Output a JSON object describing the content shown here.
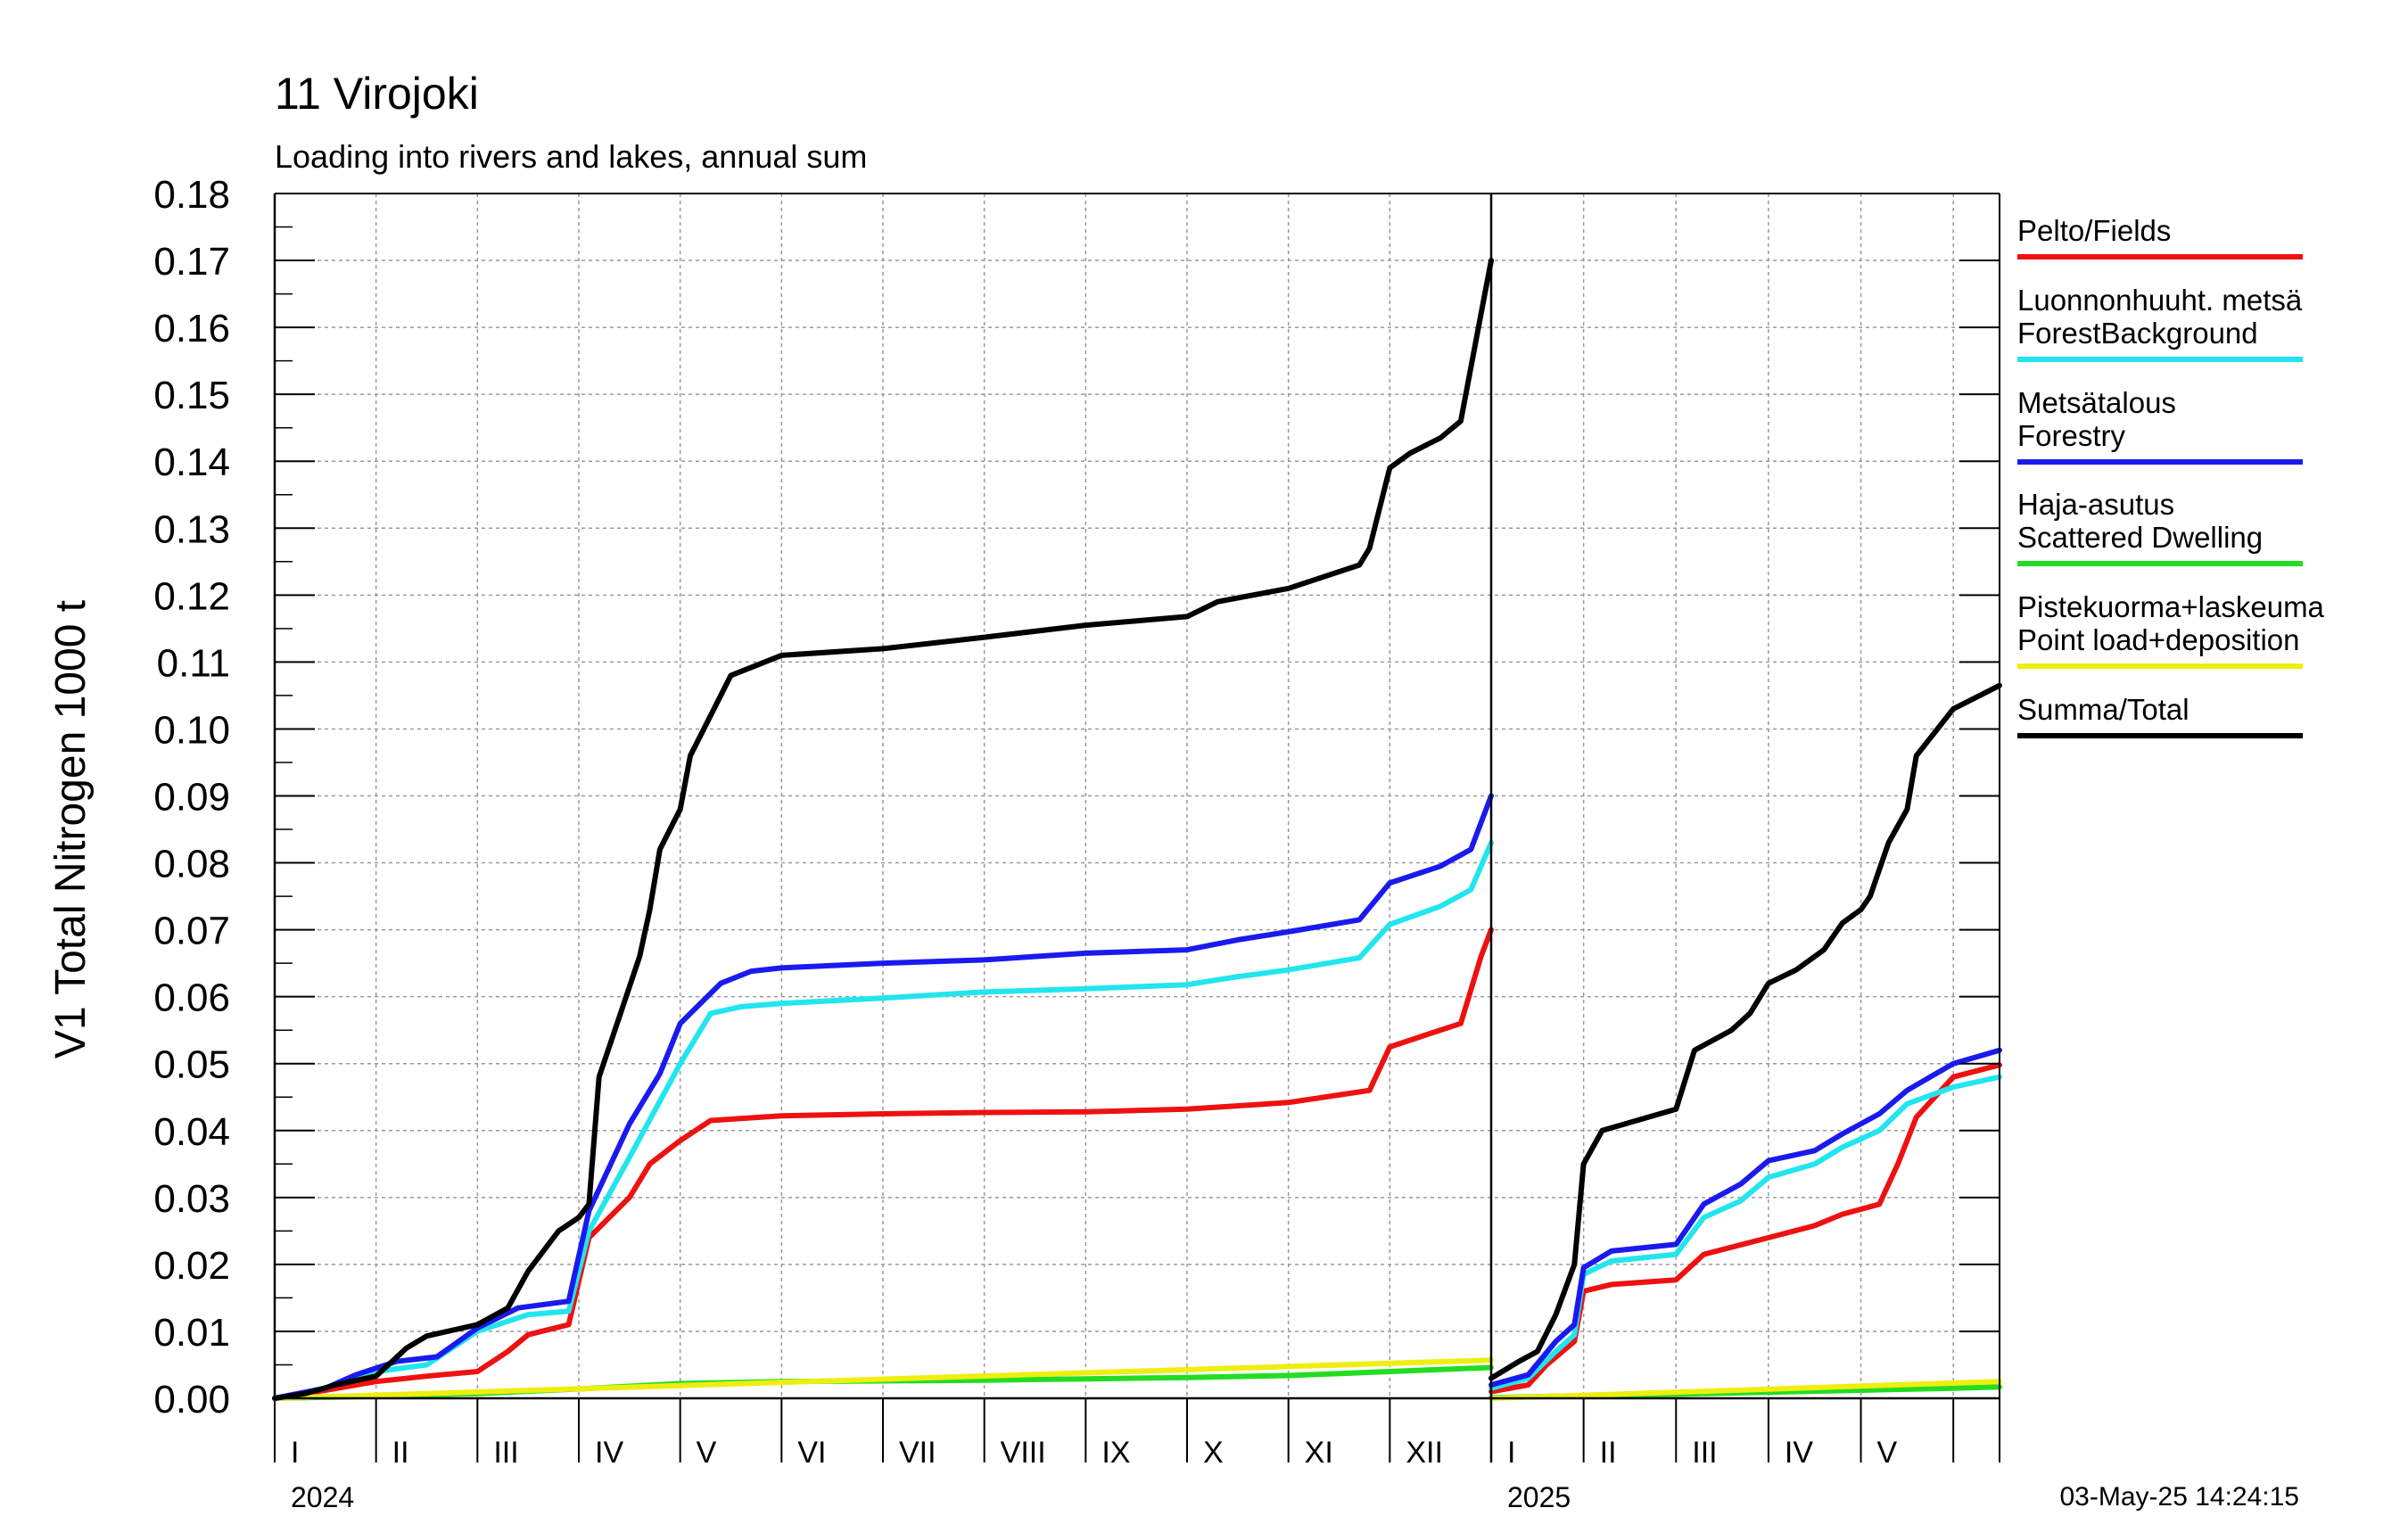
{
  "chart_data": {
    "type": "line",
    "title": "11 Virojoki",
    "subtitle": "Loading into rivers and lakes, annual sum",
    "ylabel": "V1 Total Nitrogen 1000 t",
    "xlabel": "",
    "ylim": [
      0,
      0.18
    ],
    "yticks": [
      "0.00",
      "0.01",
      "0.02",
      "0.03",
      "0.04",
      "0.05",
      "0.06",
      "0.07",
      "0.08",
      "0.09",
      "0.10",
      "0.11",
      "0.12",
      "0.13",
      "0.14",
      "0.15",
      "0.16",
      "0.17",
      "0.18"
    ],
    "grid": true,
    "legend_position": "right",
    "timestamp": "03-May-25 14:24:15",
    "years": [
      {
        "label": "2024",
        "months": [
          "I",
          "II",
          "III",
          "IV",
          "V",
          "VI",
          "VII",
          "VIII",
          "IX",
          "X",
          "XI",
          "XII"
        ]
      },
      {
        "label": "2025",
        "months": [
          "I",
          "II",
          "III",
          "IV",
          "V"
        ]
      }
    ],
    "series": [
      {
        "name": "Pelto/Fields",
        "color": "#ee1111",
        "segments": [
          {
            "year": "2024",
            "points": [
              [
                0,
                0
              ],
              [
                0.5,
                0.0012
              ],
              [
                1,
                0.0025
              ],
              [
                1.5,
                0.0033
              ],
              [
                2,
                0.004
              ],
              [
                2.3,
                0.007
              ],
              [
                2.5,
                0.0095
              ],
              [
                2.9,
                0.011
              ],
              [
                3.1,
                0.024
              ],
              [
                3.5,
                0.03
              ],
              [
                3.7,
                0.035
              ],
              [
                4,
                0.0385
              ],
              [
                4.3,
                0.0415
              ],
              [
                5,
                0.0422
              ],
              [
                6,
                0.0425
              ],
              [
                7,
                0.0427
              ],
              [
                8,
                0.0428
              ],
              [
                9,
                0.0432
              ],
              [
                10,
                0.0442
              ],
              [
                10.8,
                0.046
              ],
              [
                11,
                0.0525
              ],
              [
                11.4,
                0.0545
              ],
              [
                11.7,
                0.056
              ],
              [
                11.9,
                0.066
              ],
              [
                12,
                0.07
              ]
            ]
          },
          {
            "year": "2025",
            "points": [
              [
                0,
                0.001
              ],
              [
                0.4,
                0.002
              ],
              [
                0.6,
                0.005
              ],
              [
                0.9,
                0.0085
              ],
              [
                1,
                0.016
              ],
              [
                1.3,
                0.017
              ],
              [
                2,
                0.0177
              ],
              [
                2.3,
                0.0215
              ],
              [
                3,
                0.024
              ],
              [
                3.5,
                0.0258
              ],
              [
                3.8,
                0.0275
              ],
              [
                4.2,
                0.029
              ],
              [
                4.4,
                0.035
              ],
              [
                4.6,
                0.042
              ],
              [
                5,
                0.048
              ],
              [
                5.5,
                0.0498
              ]
            ]
          }
        ]
      },
      {
        "name": "Luonnonhuuht. metsä ForestBackground",
        "color": "#22e5ee",
        "segments": [
          {
            "year": "2024",
            "points": [
              [
                0,
                0
              ],
              [
                0.5,
                0.0015
              ],
              [
                1,
                0.004
              ],
              [
                1.5,
                0.005
              ],
              [
                2,
                0.01
              ],
              [
                2.5,
                0.0125
              ],
              [
                2.9,
                0.013
              ],
              [
                3.1,
                0.025
              ],
              [
                3.5,
                0.036
              ],
              [
                4,
                0.05
              ],
              [
                4.3,
                0.0575
              ],
              [
                4.6,
                0.0585
              ],
              [
                5,
                0.059
              ],
              [
                6,
                0.0598
              ],
              [
                7,
                0.0607
              ],
              [
                8,
                0.0612
              ],
              [
                9,
                0.0618
              ],
              [
                9.5,
                0.063
              ],
              [
                10,
                0.064
              ],
              [
                10.7,
                0.0658
              ],
              [
                11,
                0.0708
              ],
              [
                11.5,
                0.0735
              ],
              [
                11.8,
                0.076
              ],
              [
                12,
                0.083
              ]
            ]
          },
          {
            "year": "2025",
            "points": [
              [
                0,
                0.0015
              ],
              [
                0.4,
                0.003
              ],
              [
                0.7,
                0.007
              ],
              [
                0.9,
                0.0095
              ],
              [
                1,
                0.0185
              ],
              [
                1.3,
                0.0205
              ],
              [
                2,
                0.0215
              ],
              [
                2.3,
                0.027
              ],
              [
                2.7,
                0.0295
              ],
              [
                3,
                0.033
              ],
              [
                3.5,
                0.035
              ],
              [
                3.8,
                0.0375
              ],
              [
                4.2,
                0.04
              ],
              [
                4.5,
                0.044
              ],
              [
                5,
                0.0465
              ],
              [
                5.5,
                0.048
              ]
            ]
          }
        ]
      },
      {
        "name": "Metsätalous Forestry",
        "color": "#1a1aee",
        "segments": [
          {
            "year": "2024",
            "points": [
              [
                0,
                0
              ],
              [
                0.5,
                0.0015
              ],
              [
                0.8,
                0.0035
              ],
              [
                1.2,
                0.0055
              ],
              [
                1.6,
                0.0062
              ],
              [
                2,
                0.0105
              ],
              [
                2.4,
                0.0135
              ],
              [
                2.9,
                0.0145
              ],
              [
                3.1,
                0.028
              ],
              [
                3.5,
                0.041
              ],
              [
                3.8,
                0.0485
              ],
              [
                4,
                0.056
              ],
              [
                4.4,
                0.062
              ],
              [
                4.7,
                0.0638
              ],
              [
                5,
                0.0643
              ],
              [
                6,
                0.065
              ],
              [
                7,
                0.0655
              ],
              [
                8,
                0.0665
              ],
              [
                9,
                0.067
              ],
              [
                9.5,
                0.0685
              ],
              [
                10,
                0.0697
              ],
              [
                10.7,
                0.0715
              ],
              [
                11,
                0.077
              ],
              [
                11.5,
                0.0795
              ],
              [
                11.8,
                0.082
              ],
              [
                12,
                0.09
              ]
            ]
          },
          {
            "year": "2025",
            "points": [
              [
                0,
                0.002
              ],
              [
                0.4,
                0.0035
              ],
              [
                0.7,
                0.0085
              ],
              [
                0.9,
                0.011
              ],
              [
                1,
                0.0195
              ],
              [
                1.3,
                0.022
              ],
              [
                2,
                0.023
              ],
              [
                2.3,
                0.029
              ],
              [
                2.7,
                0.032
              ],
              [
                3,
                0.0355
              ],
              [
                3.5,
                0.037
              ],
              [
                3.8,
                0.0395
              ],
              [
                4.2,
                0.0425
              ],
              [
                4.5,
                0.046
              ],
              [
                5,
                0.05
              ],
              [
                5.5,
                0.052
              ]
            ]
          }
        ]
      },
      {
        "name": "Haja-asutus Scattered Dwelling",
        "color": "#22dd22",
        "segments": [
          {
            "year": "2024",
            "points": [
              [
                0,
                0
              ],
              [
                1,
                0.0003
              ],
              [
                2,
                0.0007
              ],
              [
                3,
                0.0014
              ],
              [
                4,
                0.0022
              ],
              [
                5,
                0.0025
              ],
              [
                6,
                0.0026
              ],
              [
                7,
                0.0027
              ],
              [
                8,
                0.0029
              ],
              [
                9,
                0.0031
              ],
              [
                10,
                0.0034
              ],
              [
                11,
                0.004
              ],
              [
                12,
                0.0046
              ]
            ]
          },
          {
            "year": "2025",
            "points": [
              [
                0,
                0.0001
              ],
              [
                1,
                0.0004
              ],
              [
                2,
                0.0006
              ],
              [
                3,
                0.0009
              ],
              [
                4,
                0.0012
              ],
              [
                5,
                0.0015
              ],
              [
                5.5,
                0.0017
              ]
            ]
          }
        ]
      },
      {
        "name": "Pistekuorma+laskeuma Point load+deposition",
        "color": "#eeee11",
        "segments": [
          {
            "year": "2024",
            "points": [
              [
                0,
                0
              ],
              [
                12,
                0.0057
              ]
            ]
          },
          {
            "year": "2025",
            "points": [
              [
                0,
                0
              ],
              [
                5.5,
                0.0025
              ]
            ]
          }
        ]
      },
      {
        "name": "Summa/Total",
        "color": "#000000",
        "segments": [
          {
            "year": "2024",
            "points": [
              [
                0,
                0
              ],
              [
                0.3,
                0.0007
              ],
              [
                0.6,
                0.002
              ],
              [
                1,
                0.0033
              ],
              [
                1.3,
                0.0075
              ],
              [
                1.5,
                0.0093
              ],
              [
                2,
                0.011
              ],
              [
                2.3,
                0.0135
              ],
              [
                2.5,
                0.019
              ],
              [
                2.8,
                0.025
              ],
              [
                3,
                0.027
              ],
              [
                3.1,
                0.029
              ],
              [
                3.2,
                0.048
              ],
              [
                3.4,
                0.057
              ],
              [
                3.6,
                0.066
              ],
              [
                3.7,
                0.073
              ],
              [
                3.8,
                0.082
              ],
              [
                4,
                0.088
              ],
              [
                4.1,
                0.096
              ],
              [
                4.3,
                0.102
              ],
              [
                4.5,
                0.108
              ],
              [
                5,
                0.111
              ],
              [
                6,
                0.112
              ],
              [
                7,
                0.1137
              ],
              [
                8,
                0.1155
              ],
              [
                9,
                0.1168
              ],
              [
                9.3,
                0.119
              ],
              [
                10,
                0.121
              ],
              [
                10.7,
                0.1245
              ],
              [
                10.8,
                0.127
              ],
              [
                11,
                0.139
              ],
              [
                11.2,
                0.1412
              ],
              [
                11.5,
                0.1435
              ],
              [
                11.7,
                0.146
              ],
              [
                11.9,
                0.162
              ],
              [
                12,
                0.17
              ]
            ]
          },
          {
            "year": "2025",
            "points": [
              [
                0,
                0.003
              ],
              [
                0.3,
                0.0055
              ],
              [
                0.5,
                0.007
              ],
              [
                0.7,
                0.0125
              ],
              [
                0.9,
                0.02
              ],
              [
                1,
                0.035
              ],
              [
                1.2,
                0.04
              ],
              [
                2,
                0.0432
              ],
              [
                2.2,
                0.052
              ],
              [
                2.6,
                0.055
              ],
              [
                2.8,
                0.0575
              ],
              [
                3,
                0.062
              ],
              [
                3.3,
                0.064
              ],
              [
                3.6,
                0.067
              ],
              [
                3.8,
                0.071
              ],
              [
                4,
                0.073
              ],
              [
                4.1,
                0.075
              ],
              [
                4.3,
                0.083
              ],
              [
                4.5,
                0.088
              ],
              [
                4.6,
                0.096
              ],
              [
                5,
                0.103
              ],
              [
                5.5,
                0.1065
              ]
            ]
          }
        ]
      }
    ]
  }
}
